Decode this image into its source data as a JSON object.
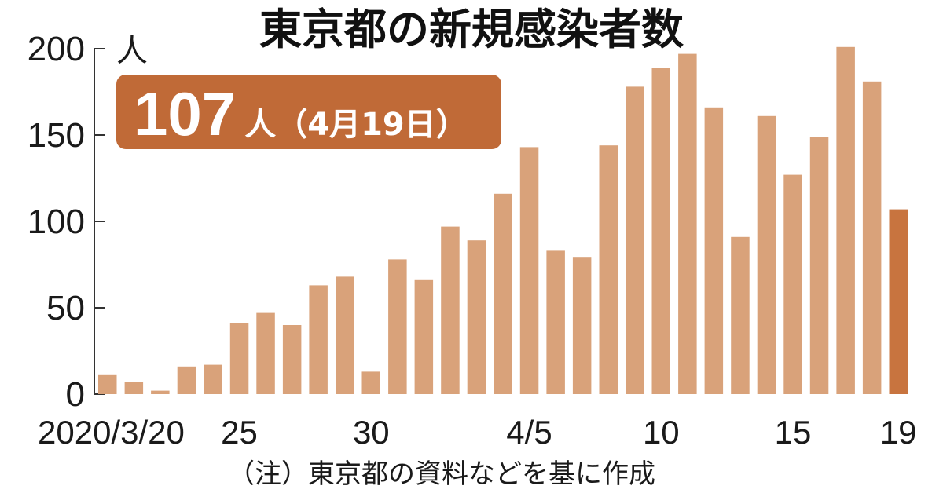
{
  "chart_data": {
    "type": "bar",
    "title": "東京都の新規感染者数",
    "y_unit": "人",
    "ylim": [
      0,
      200
    ],
    "y_ticks": [
      "0",
      "50",
      "100",
      "150",
      "200"
    ],
    "x_tick_labels": [
      {
        "index": 0,
        "label": "2020/3/20"
      },
      {
        "index": 5,
        "label": "25"
      },
      {
        "index": 10,
        "label": "30"
      },
      {
        "index": 16,
        "label": "4/5"
      },
      {
        "index": 21,
        "label": "10"
      },
      {
        "index": 26,
        "label": "15"
      },
      {
        "index": 30,
        "label": "19"
      }
    ],
    "categories": [
      "3/20",
      "3/21",
      "3/22",
      "3/23",
      "3/24",
      "3/25",
      "3/26",
      "3/27",
      "3/28",
      "3/29",
      "3/30",
      "3/31",
      "4/1",
      "4/2",
      "4/3",
      "4/4",
      "4/5",
      "4/6",
      "4/7",
      "4/8",
      "4/9",
      "4/10",
      "4/11",
      "4/12",
      "4/13",
      "4/14",
      "4/15",
      "4/16",
      "4/17",
      "4/18",
      "4/19"
    ],
    "values": [
      11,
      7,
      2,
      16,
      17,
      41,
      47,
      40,
      63,
      68,
      13,
      78,
      66,
      97,
      89,
      116,
      143,
      83,
      79,
      144,
      178,
      189,
      197,
      166,
      91,
      161,
      127,
      149,
      201,
      181,
      107
    ],
    "bar_color": "#d9a27a",
    "highlight_index": 30,
    "highlight_color": "#c8743f",
    "callout": {
      "value": "107",
      "suffix": "人（4月19日）",
      "color": "#c06a37"
    },
    "note": "（注）東京都の資料などを基に作成"
  }
}
